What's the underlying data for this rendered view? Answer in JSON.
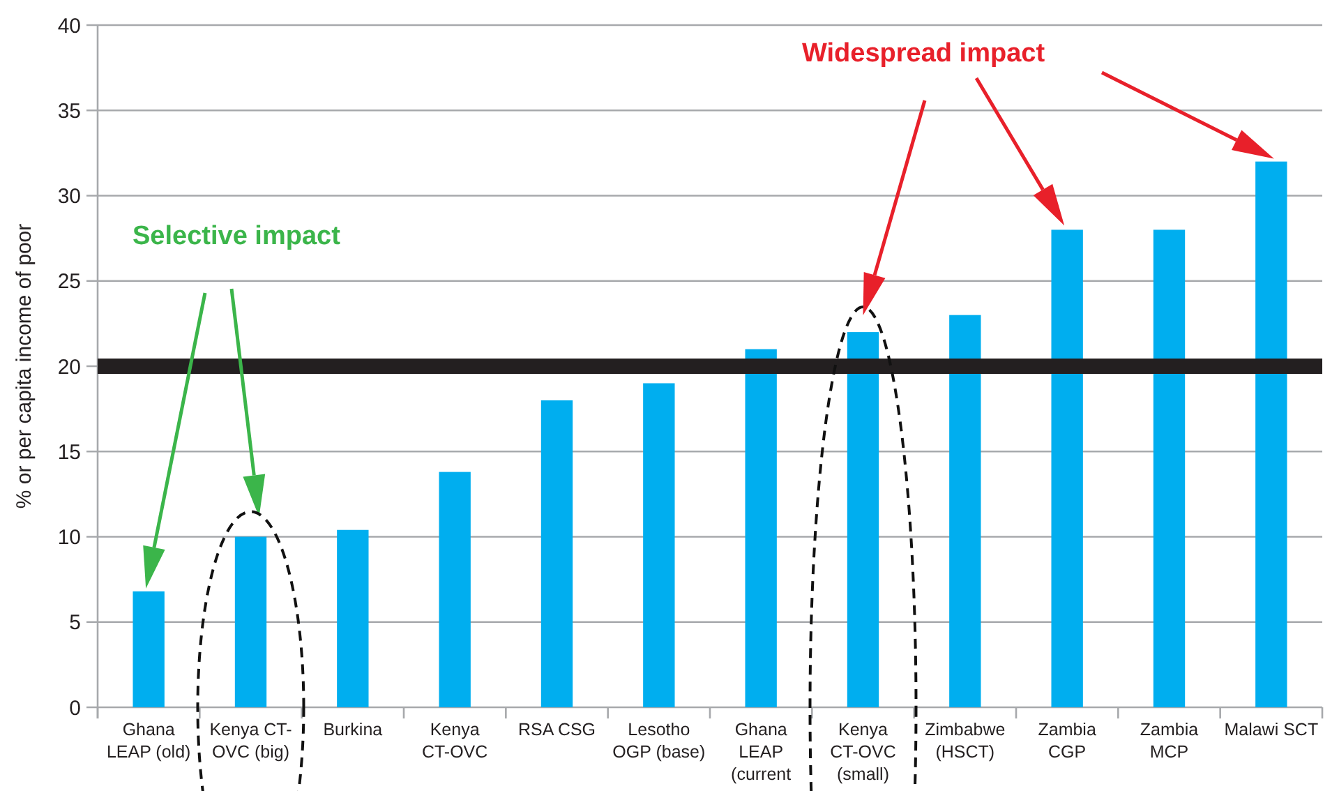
{
  "chart_data": {
    "type": "bar",
    "ylabel": "% or per capita income of poor",
    "categories": [
      "Ghana\nLEAP (old)",
      "Kenya CT-\nOVC (big)",
      "Burkina",
      "Kenya\nCT-OVC",
      "RSA CSG",
      "Lesotho\nOGP (base)",
      "Ghana\nLEAP\n(current",
      "Kenya\nCT-OVC\n(small)",
      "Zimbabwe\n(HSCT)",
      "Zambia\nCGP",
      "Zambia\nMCP",
      "Malawi SCT"
    ],
    "values": [
      6.8,
      10,
      10.4,
      13.8,
      18,
      19,
      21,
      22,
      23,
      28,
      28,
      32
    ],
    "color": "#00aeef",
    "ylim": [
      0,
      40
    ],
    "yticks": [
      0,
      5,
      10,
      15,
      20,
      25,
      30,
      35,
      40
    ],
    "grid": "y",
    "ref_lines": [
      {
        "axis": "y",
        "value": 20,
        "color": "#231f20"
      }
    ],
    "annotations": [
      "Selective impact",
      "Widespread impact"
    ]
  }
}
